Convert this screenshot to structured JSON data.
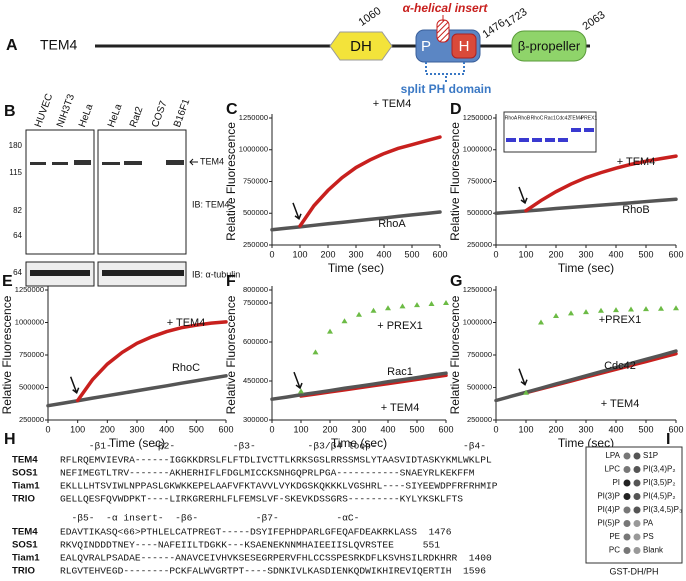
{
  "panel_a": {
    "label": "A",
    "protein": "TEM4",
    "dh": "DH",
    "p": "P",
    "h": "H",
    "insert": "α-helical insert",
    "beta": "β-propeller",
    "split": "split PH domain",
    "positions": [
      1060,
      1476,
      1723,
      2063
    ]
  },
  "panel_b": {
    "label": "B",
    "lanes_left": [
      "HUVEC",
      "NIH3T3",
      "HeLa"
    ],
    "lanes_right": [
      "HeLa",
      "Rat2",
      "COS7",
      "B16F1"
    ],
    "markers": [
      180,
      115,
      82,
      64,
      64
    ],
    "band": "TEM4",
    "ib_top": "IB: TEM4",
    "ib_bottom": "IB: α-tubulin"
  },
  "chart_data": [
    {
      "panel": "C",
      "type": "line",
      "xlabel": "Time (sec)",
      "ylabel": "Relative Fluorescence",
      "x": [
        0,
        50,
        100,
        150,
        200,
        250,
        300,
        350,
        400,
        450,
        500,
        550,
        600
      ],
      "xlim": [
        0,
        600
      ],
      "xticks": [
        0,
        100,
        200,
        300,
        400,
        500,
        600
      ],
      "ylim": [
        250000,
        1250000
      ],
      "yticks": [
        250000,
        500000,
        750000,
        1000000,
        1250000
      ],
      "series": [
        {
          "name": "+ TEM4",
          "color": "#c8201e",
          "values": [
            null,
            null,
            400000,
            560000,
            680000,
            780000,
            860000,
            920000,
            970000,
            1010000,
            1040000,
            1070000,
            1100000
          ]
        },
        {
          "name": "RhoA",
          "color": "#555555",
          "values": [
            370000,
            382000,
            393000,
            405000,
            417000,
            428000,
            440000,
            452000,
            463000,
            475000,
            487000,
            498000,
            510000
          ]
        }
      ]
    },
    {
      "panel": "D",
      "type": "line",
      "xlabel": "Time (sec)",
      "ylabel": "Relative Fluorescence",
      "x": [
        0,
        50,
        100,
        150,
        200,
        250,
        300,
        350,
        400,
        450,
        500,
        550,
        600
      ],
      "xlim": [
        0,
        600
      ],
      "xticks": [
        0,
        100,
        200,
        300,
        400,
        500,
        600
      ],
      "ylim": [
        250000,
        1250000
      ],
      "yticks": [
        250000,
        500000,
        750000,
        1000000,
        1250000
      ],
      "inset_labels": [
        "RhoA",
        "RhoB",
        "RhoC",
        "Rac1",
        "Cdc42",
        "TEM4",
        "PREX1"
      ],
      "series": [
        {
          "name": "+ TEM4",
          "color": "#c8201e",
          "values": [
            null,
            null,
            520000,
            600000,
            670000,
            730000,
            780000,
            820000,
            855000,
            885000,
            910000,
            930000,
            950000
          ]
        },
        {
          "name": "RhoB",
          "color": "#555555",
          "values": [
            500000,
            509000,
            518000,
            527000,
            537000,
            546000,
            555000,
            564000,
            573000,
            582000,
            592000,
            601000,
            610000
          ]
        }
      ]
    },
    {
      "panel": "E",
      "type": "line",
      "xlabel": "Time (sec)",
      "ylabel": "Relative Fluorescence",
      "x": [
        0,
        50,
        100,
        150,
        200,
        250,
        300,
        350,
        400,
        450,
        500,
        550,
        600
      ],
      "xlim": [
        0,
        600
      ],
      "xticks": [
        0,
        100,
        200,
        300,
        400,
        500,
        600
      ],
      "ylim": [
        250000,
        1250000
      ],
      "yticks": [
        250000,
        500000,
        750000,
        1000000,
        1250000
      ],
      "series": [
        {
          "name": "+ TEM4",
          "color": "#c8201e",
          "values": [
            null,
            null,
            400000,
            560000,
            680000,
            770000,
            840000,
            890000,
            930000,
            960000,
            980000,
            995000,
            1005000
          ]
        },
        {
          "name": "RhoC",
          "color": "#555555",
          "values": [
            360000,
            379000,
            398000,
            418000,
            437000,
            456000,
            475000,
            494000,
            513000,
            533000,
            552000,
            571000,
            590000
          ]
        }
      ]
    },
    {
      "panel": "F",
      "type": "line",
      "xlabel": "Time (sec)",
      "ylabel": "Relative Fluorescence",
      "x": [
        0,
        50,
        100,
        150,
        200,
        250,
        300,
        350,
        400,
        450,
        500,
        550,
        600
      ],
      "xlim": [
        0,
        600
      ],
      "xticks": [
        0,
        100,
        200,
        300,
        400,
        500,
        600
      ],
      "ylim": [
        300000,
        800000
      ],
      "yticks": [
        300000,
        450000,
        600000,
        750000,
        800000
      ],
      "series": [
        {
          "name": "+ PREX1",
          "color": "#6cbb45",
          "marker": true,
          "values": [
            null,
            null,
            410000,
            560000,
            640000,
            680000,
            705000,
            720000,
            730000,
            737000,
            742000,
            746000,
            750000
          ]
        },
        {
          "name": "Rac1",
          "color": "#555555",
          "values": [
            380000,
            388000,
            397000,
            405000,
            413000,
            422000,
            430000,
            438000,
            447000,
            455000,
            463000,
            472000,
            480000
          ]
        },
        {
          "name": "+ TEM4",
          "color": "#c8201e",
          "values": [
            null,
            null,
            392000,
            400000,
            408000,
            416000,
            424000,
            432000,
            440000,
            448000,
            456000,
            464000,
            472000
          ]
        }
      ]
    },
    {
      "panel": "G",
      "type": "line",
      "xlabel": "Time (sec)",
      "ylabel": "Relative Fluorescence",
      "x": [
        0,
        50,
        100,
        150,
        200,
        250,
        300,
        350,
        400,
        450,
        500,
        550,
        600
      ],
      "xlim": [
        0,
        600
      ],
      "xticks": [
        0,
        100,
        200,
        300,
        400,
        500,
        600
      ],
      "ylim": [
        250000,
        1250000
      ],
      "yticks": [
        250000,
        500000,
        750000,
        1000000,
        1250000
      ],
      "series": [
        {
          "name": "+PREX1",
          "color": "#6cbb45",
          "marker": true,
          "values": [
            null,
            null,
            460000,
            1000000,
            1050000,
            1070000,
            1080000,
            1090000,
            1095000,
            1100000,
            1103000,
            1106000,
            1110000
          ]
        },
        {
          "name": "Cdc42",
          "color": "#555555",
          "values": [
            400000,
            432000,
            463000,
            495000,
            527000,
            558000,
            590000,
            622000,
            653000,
            685000,
            717000,
            748000,
            780000
          ]
        },
        {
          "name": "+ TEM4",
          "color": "#c8201e",
          "values": [
            null,
            null,
            460000,
            490000,
            520000,
            550000,
            580000,
            610000,
            640000,
            670000,
            700000,
            730000,
            760000
          ]
        }
      ]
    }
  ],
  "panel_h": {
    "label": "H",
    "header1": "     -β1-       -β2-          -β3-         -β3/β4 loop-               -β4-",
    "rows1": [
      [
        "TEM4",
        "RFLRQEMVIEVRA------IGGKKDRSLFLFTDLIVCTTLKRKSGSLRRSSMSLYTAASVIDTASKYKMLWKLPL"
      ],
      [
        "SOS1",
        "NEFIMEGTLTRV-------AKHERHIFLFDGLMICCKSNHGQPRLPGA-----------SNAEYRLKEKFFM"
      ],
      [
        "Tiam1",
        "EKLLLHTSVIWLNPPASLGKWKKEPELAAFVFKTAVVLVYKDGSKQKKKLVGSHRL----SIYEEWDPFRFRHMIP"
      ],
      [
        "TRIO",
        "GELLQESFQVWDPKT----LIRKGRERHLFLFEMSLVF-SKEVKDSSGRS---------KYLYKSKLFTS"
      ]
    ],
    "header2": "  -β5-  -α insert-  -β6-          -β7-          -αC-",
    "rows2": [
      [
        "TEM4",
        "EDAVTIKASQ<66>PTHLELCATPREGT-----DSYIFEPHDPARLGFEQAFDEAKRKLASS  1476"
      ],
      [
        "SOS1",
        "RKVQINDDDTNEY----NAFEIILTDGKK---KSAENEKNNMHAIEEIISLQVRSTEE     551"
      ],
      [
        "Tiam1",
        "EALQVRALPSADAE------ANAVCEIVHVKSESEGRPERVFHLCCSSPESRKDFLKSVHSILRDKHRR  1400"
      ],
      [
        "TRIO",
        "RLGVTEHVEGD--------PCKFALWVGRTPT----SDNKIVLKASDIENKQDWIKHIREVIQERTIH  1596"
      ]
    ]
  },
  "panel_i": {
    "label": "I",
    "left": [
      "LPA",
      "LPC",
      "PI",
      "PI(3)P",
      "PI(4)P",
      "PI(5)P",
      "PE",
      "PC"
    ],
    "right": [
      "S1P",
      "PI(3,4)P₂",
      "PI(3,5)P₂",
      "PI(4,5)P₂",
      "PI(3,4,5)P₃",
      "PA",
      "PS",
      "Blank"
    ],
    "caption": "GST-DH/PH"
  }
}
